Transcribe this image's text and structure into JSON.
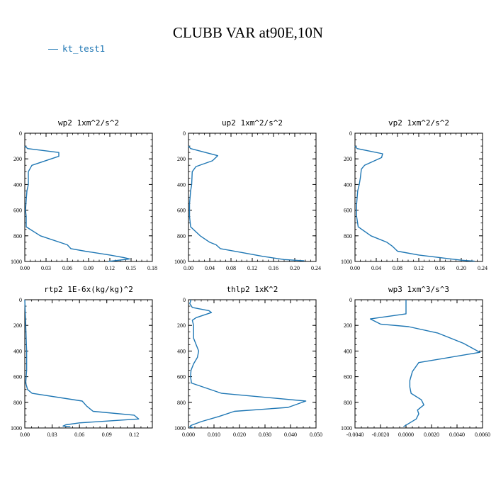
{
  "title": "CLUBB VAR at90E,10N",
  "legend": {
    "label": "kt_test1",
    "color": "#1f77b4"
  },
  "chart_data": [
    {
      "type": "line",
      "title": "wp2  1xm^2/s^2",
      "xlim": [
        0,
        0.18
      ],
      "ylim": [
        1000,
        0
      ],
      "y_inverted": true,
      "xticks": [
        0,
        0.03,
        0.06,
        0.09,
        0.12,
        0.15,
        0.18
      ],
      "xtick_labels": [
        "0.00",
        "0.03",
        "0.06",
        "0.09",
        "0.12",
        "0.15",
        "0.18"
      ],
      "yticks": [
        0,
        200,
        400,
        600,
        800,
        1000
      ],
      "ytick_labels": [
        "0",
        "200",
        "400",
        "600",
        "800",
        "1000"
      ],
      "series": [
        {
          "color": "#1f77b4",
          "x": [
            0.0,
            0.004,
            0.048,
            0.048,
            0.01,
            0.005,
            0.005,
            0.003,
            0.002,
            0.001,
            0.002,
            0.002,
            0.022,
            0.06,
            0.065,
            0.085,
            0.12,
            0.14,
            0.148,
            0.118
          ],
          "y": [
            100,
            120,
            150,
            180,
            250,
            300,
            400,
            450,
            520,
            600,
            650,
            730,
            800,
            870,
            900,
            920,
            950,
            970,
            980,
            1000
          ]
        }
      ]
    },
    {
      "type": "line",
      "title": "up2  1xm^2/s^2",
      "xlim": [
        0,
        0.24
      ],
      "ylim": [
        1000,
        0
      ],
      "y_inverted": true,
      "xticks": [
        0,
        0.04,
        0.08,
        0.12,
        0.16,
        0.2,
        0.24
      ],
      "xtick_labels": [
        "0.00",
        "0.04",
        "0.08",
        "0.12",
        "0.16",
        "0.20",
        "0.24"
      ],
      "yticks": [
        0,
        200,
        400,
        600,
        800,
        1000
      ],
      "ytick_labels": [
        "0",
        "200",
        "400",
        "600",
        "800",
        "1000"
      ],
      "series": [
        {
          "color": "#1f77b4",
          "x": [
            0.0,
            0.004,
            0.055,
            0.045,
            0.014,
            0.007,
            0.006,
            0.004,
            0.002,
            0.002,
            0.004,
            0.022,
            0.04,
            0.052,
            0.06,
            0.1,
            0.14,
            0.18,
            0.218
          ],
          "y": [
            100,
            120,
            175,
            215,
            260,
            300,
            400,
            450,
            550,
            650,
            730,
            800,
            850,
            870,
            900,
            930,
            960,
            985,
            995
          ]
        }
      ]
    },
    {
      "type": "line",
      "title": "vp2  1xm^2/s^2",
      "xlim": [
        0,
        0.24
      ],
      "ylim": [
        1000,
        0
      ],
      "y_inverted": true,
      "xticks": [
        0,
        0.04,
        0.08,
        0.12,
        0.16,
        0.2,
        0.24
      ],
      "xtick_labels": [
        "0.00",
        "0.04",
        "0.08",
        "0.12",
        "0.16",
        "0.20",
        "0.24"
      ],
      "yticks": [
        0,
        200,
        400,
        600,
        800,
        1000
      ],
      "ytick_labels": [
        "0",
        "200",
        "400",
        "600",
        "800",
        "1000"
      ],
      "series": [
        {
          "color": "#1f77b4",
          "x": [
            0.0,
            0.004,
            0.052,
            0.05,
            0.018,
            0.012,
            0.01,
            0.008,
            0.005,
            0.003,
            0.003,
            0.006,
            0.03,
            0.06,
            0.07,
            0.08,
            0.12,
            0.16,
            0.2,
            0.225
          ],
          "y": [
            100,
            120,
            160,
            190,
            250,
            280,
            350,
            400,
            450,
            550,
            650,
            730,
            800,
            850,
            880,
            920,
            950,
            970,
            990,
            998
          ]
        }
      ]
    },
    {
      "type": "line",
      "title": "rtp2  1E-6x(kg/kg)^2",
      "xlim": [
        0,
        0.14
      ],
      "ylim": [
        1000,
        0
      ],
      "y_inverted": true,
      "xticks": [
        0,
        0.03,
        0.06,
        0.09,
        0.12
      ],
      "xtick_labels": [
        "0.00",
        "0.03",
        "0.06",
        "0.09",
        "0.12"
      ],
      "yticks": [
        0,
        200,
        400,
        600,
        800,
        1000
      ],
      "ytick_labels": [
        "0",
        "200",
        "400",
        "600",
        "800",
        "1000"
      ],
      "series": [
        {
          "color": "#1f77b4",
          "x": [
            0.0,
            0.001,
            0.002,
            0.002,
            0.001,
            0.003,
            0.008,
            0.063,
            0.068,
            0.075,
            0.12,
            0.125,
            0.06,
            0.045,
            0.042,
            0.05
          ],
          "y": [
            0,
            200,
            400,
            550,
            650,
            700,
            730,
            790,
            830,
            870,
            900,
            930,
            960,
            975,
            985,
            990
          ]
        }
      ]
    },
    {
      "type": "line",
      "title": "thlp2  1xK^2",
      "xlim": [
        0,
        0.05
      ],
      "ylim": [
        1000,
        0
      ],
      "y_inverted": true,
      "xticks": [
        0,
        0.01,
        0.02,
        0.03,
        0.04,
        0.05
      ],
      "xtick_labels": [
        "0.000",
        "0.010",
        "0.020",
        "0.030",
        "0.040",
        "0.050"
      ],
      "yticks": [
        0,
        200,
        400,
        600,
        800,
        1000
      ],
      "ytick_labels": [
        "0",
        "200",
        "400",
        "600",
        "800",
        "1000"
      ],
      "series": [
        {
          "color": "#1f77b4",
          "x": [
            0.001,
            0.0005,
            0.0015,
            0.008,
            0.009,
            0.003,
            0.0015,
            0.002,
            0.002,
            0.003,
            0.004,
            0.0035,
            0.002,
            0.001,
            0.0008,
            0.0012,
            0.013,
            0.046,
            0.039,
            0.018,
            0.012,
            0.005,
            0.001,
            0.0005,
            0.002
          ],
          "y": [
            0,
            30,
            60,
            85,
            100,
            140,
            160,
            200,
            300,
            350,
            400,
            450,
            500,
            550,
            600,
            650,
            730,
            790,
            840,
            870,
            910,
            950,
            980,
            990,
            1000
          ]
        }
      ]
    },
    {
      "type": "line",
      "title": "wp3  1xm^3/s^3",
      "xlim": [
        -0.004,
        0.006
      ],
      "ylim": [
        1000,
        0
      ],
      "y_inverted": true,
      "xticks": [
        -0.004,
        -0.002,
        0,
        0.002,
        0.004,
        0.006
      ],
      "xtick_labels": [
        "-0.0040",
        "-0.0020",
        "0.0000",
        "0.0020",
        "0.0040",
        "0.0060"
      ],
      "yticks": [
        0,
        200,
        400,
        600,
        800,
        1000
      ],
      "ytick_labels": [
        "0",
        "200",
        "400",
        "600",
        "800",
        "1000"
      ],
      "series": [
        {
          "color": "#1f77b4",
          "x": [
            0.0,
            0.0,
            0.0,
            -0.0028,
            -0.002,
            0.0002,
            0.0025,
            0.0045,
            0.0058,
            0.001,
            0.0005,
            0.0003,
            0.0003,
            0.0004,
            0.0012,
            0.0014,
            0.0009,
            0.001,
            0.0008,
            -0.0002
          ],
          "y": [
            0,
            100,
            110,
            150,
            190,
            210,
            260,
            340,
            410,
            490,
            560,
            630,
            680,
            730,
            780,
            820,
            860,
            890,
            930,
            990
          ]
        }
      ]
    }
  ]
}
